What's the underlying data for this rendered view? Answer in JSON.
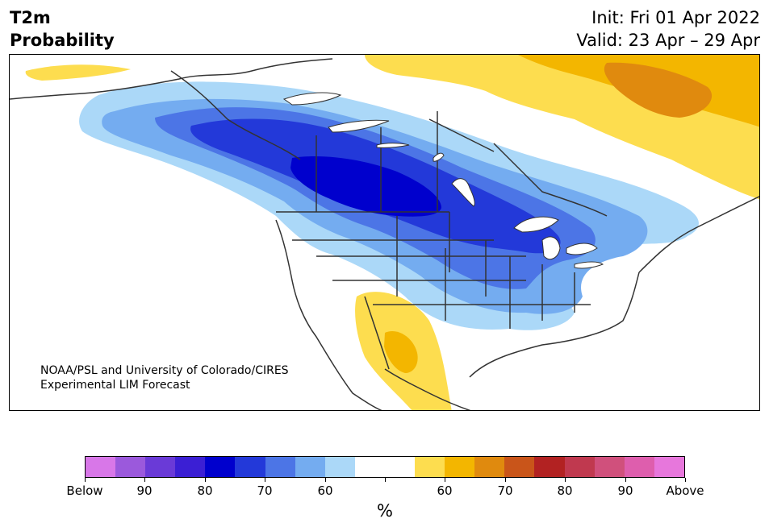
{
  "header": {
    "variable": "T2m",
    "kind": "Probability",
    "init": "Init: Fri 01 Apr 2022",
    "valid": "Valid: 23 Apr – 29 Apr"
  },
  "map": {
    "credit_line1": "NOAA/PSL and University of Colorado/CIRES",
    "credit_line2": "Experimental LIM Forecast"
  },
  "colorbar": {
    "colors": [
      "#d877e8",
      "#9b59dc",
      "#6a3ad7",
      "#3b1fd4",
      "#0000cd",
      "#2339d9",
      "#4c75e6",
      "#74acf0",
      "#abd8f8",
      "#ffffff",
      "#ffffff",
      "#fddd4f",
      "#f3b600",
      "#e08a0e",
      "#c9551a",
      "#b22222",
      "#c0394f",
      "#d0507c",
      "#de5ead",
      "#e777dc"
    ],
    "tick_labels": [
      "Below",
      "90",
      "80",
      "70",
      "60",
      "",
      "60",
      "70",
      "80",
      "90",
      "Above"
    ],
    "unit": "%"
  }
}
